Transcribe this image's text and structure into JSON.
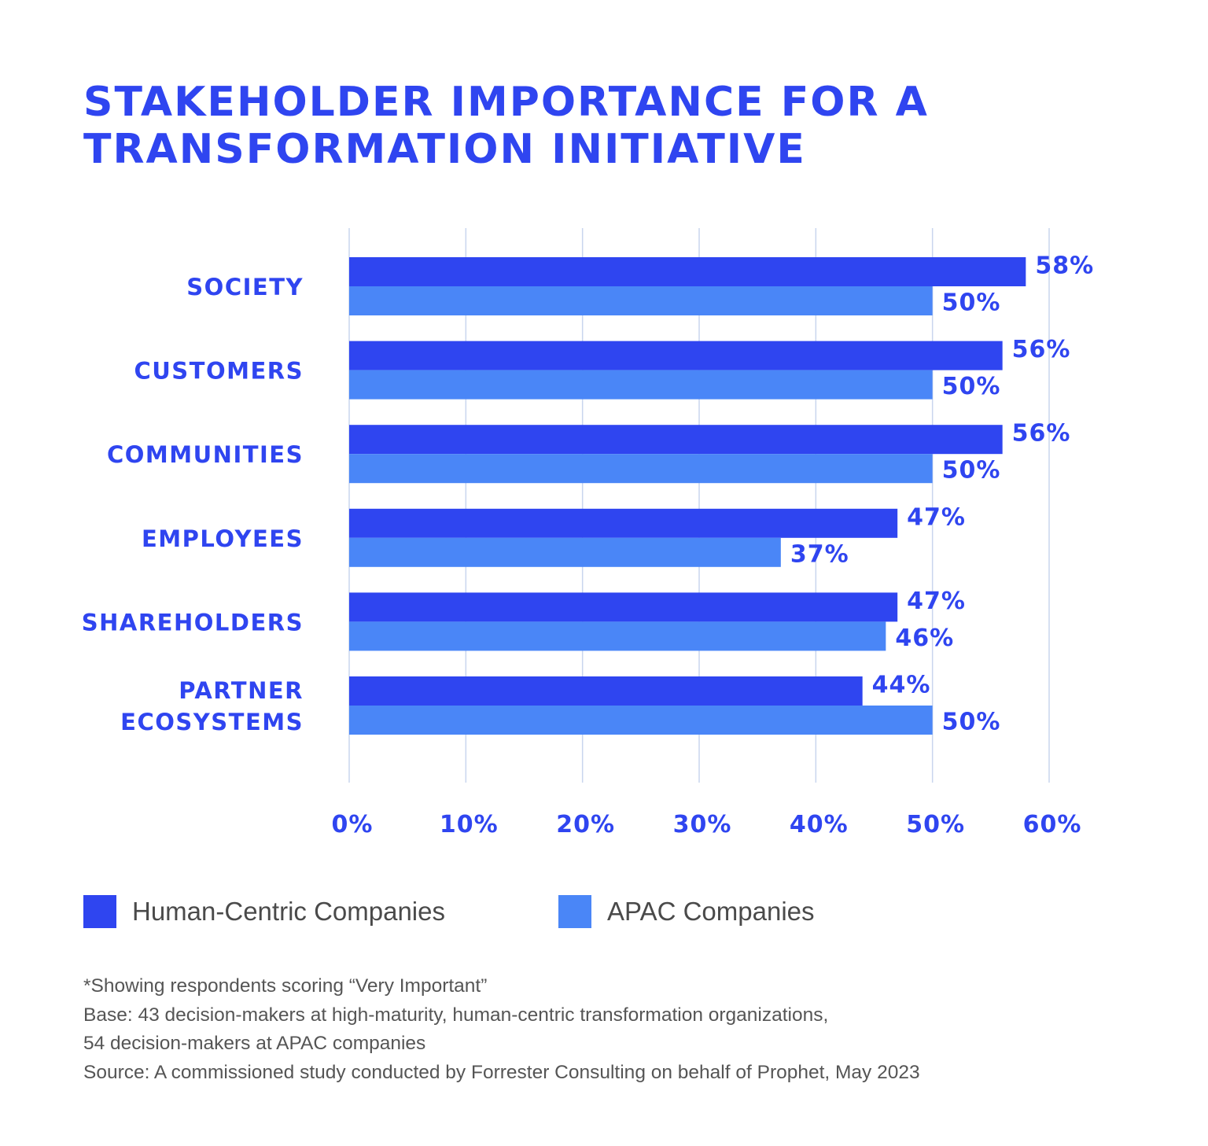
{
  "title_lines": [
    "STAKEHOLDER IMPORTANCE FOR A",
    "TRANSFORMATION INITIATIVE"
  ],
  "colors": {
    "title": "#2f45f0",
    "series_dark": "#2f45f0",
    "series_light": "#4a86f7",
    "label": "#2f45f0",
    "grid": "#c9d5ee",
    "note_text": "#555555"
  },
  "chart_data": {
    "type": "bar",
    "orientation": "horizontal",
    "categories": [
      [
        "SOCIETY"
      ],
      [
        "CUSTOMERS"
      ],
      [
        "COMMUNITIES"
      ],
      [
        "EMPLOYEES"
      ],
      [
        "SHAREHOLDERS"
      ],
      [
        "PARTNER",
        "ECOSYSTEMS"
      ]
    ],
    "series": [
      {
        "name": "Human-Centric Companies",
        "values": [
          58,
          56,
          56,
          47,
          47,
          44
        ]
      },
      {
        "name": "APAC Companies",
        "values": [
          50,
          50,
          50,
          37,
          46,
          50
        ]
      }
    ],
    "value_labels": [
      [
        "58%",
        "56%",
        "56%",
        "47%",
        "47%",
        "44%"
      ],
      [
        "50%",
        "50%",
        "50%",
        "37%",
        "46%",
        "50%"
      ]
    ],
    "xlim": [
      0,
      60
    ],
    "x_ticks": [
      0,
      10,
      20,
      30,
      40,
      50,
      60
    ],
    "x_tick_labels": [
      "0%",
      "10%",
      "20%",
      "30%",
      "40%",
      "50%",
      "60%"
    ],
    "grid": true,
    "legend_position": "bottom-left"
  },
  "legend": {
    "items": [
      {
        "label": "Human-Centric Companies",
        "color": "#2f45f0"
      },
      {
        "label": "APAC Companies",
        "color": "#4a86f7"
      }
    ]
  },
  "notes": [
    "*Showing respondents scoring “Very Important”",
    "Base: 43 decision-makers at high-maturity, human-centric transformation organizations,",
    "54 decision-makers at APAC companies",
    "Source: A commissioned study conducted by Forrester Consulting on behalf of Prophet, May 2023"
  ]
}
